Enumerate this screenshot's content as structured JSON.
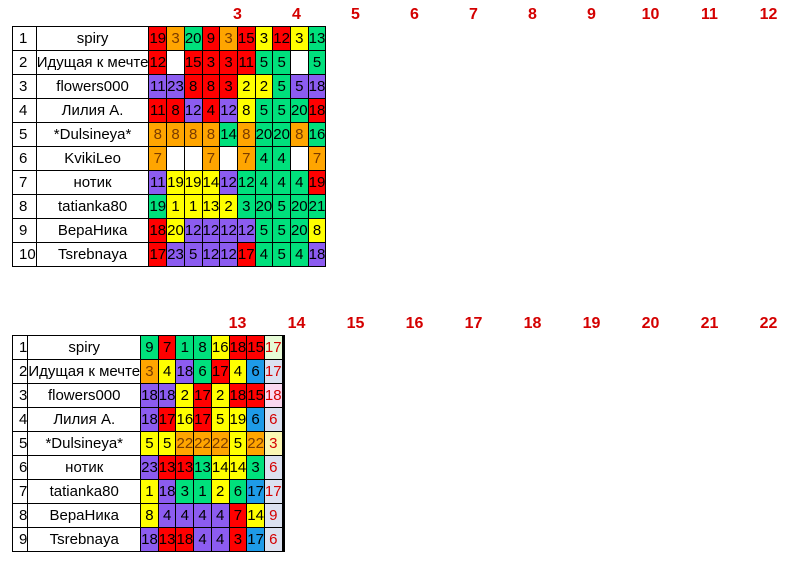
{
  "colors": {
    "red": "#ff0000",
    "orange": "#ffa500",
    "green": "#00e07c",
    "yellow": "#ffff00",
    "purple": "#8c5cf0",
    "blue": "#1e9be8",
    "pale_green": "#e6fbd6",
    "pale_blue": "#dbe1f0",
    "pale_pink": "#fad8f0",
    "pale_yellow": "#fbf8b4",
    "header_red": "#d40000"
  },
  "tables": [
    {
      "columns": [
        "3",
        "4",
        "5",
        "6",
        "7",
        "8",
        "9",
        "10",
        "11",
        "12"
      ],
      "rows": [
        {
          "num": "1",
          "name": "spiry",
          "cells": [
            [
              "19",
              "red"
            ],
            [
              "3",
              "orange"
            ],
            [
              "20",
              "green"
            ],
            [
              "9",
              "red"
            ],
            [
              "3",
              "orange"
            ],
            [
              "15",
              "red"
            ],
            [
              "3",
              "yellow"
            ],
            [
              "12",
              "red"
            ],
            [
              "3",
              "yellow"
            ],
            [
              "13",
              "green"
            ]
          ]
        },
        {
          "num": "2",
          "name": "Идущая к мечте",
          "cells": [
            [
              "12",
              "red"
            ],
            [
              "",
              ""
            ],
            [
              "15",
              "red"
            ],
            [
              "3",
              "red"
            ],
            [
              "3",
              "red"
            ],
            [
              "11",
              "red"
            ],
            [
              "5",
              "green"
            ],
            [
              "5",
              "green"
            ],
            [
              "",
              ""
            ],
            [
              "5",
              "green"
            ]
          ]
        },
        {
          "num": "3",
          "name": "flowers000",
          "cells": [
            [
              "11",
              "purple"
            ],
            [
              "23",
              "purple"
            ],
            [
              "8",
              "red"
            ],
            [
              "8",
              "red"
            ],
            [
              "3",
              "red"
            ],
            [
              "2",
              "yellow"
            ],
            [
              "2",
              "yellow"
            ],
            [
              "5",
              "green"
            ],
            [
              "5",
              "purple"
            ],
            [
              "18",
              "purple"
            ]
          ]
        },
        {
          "num": "4",
          "name": "Лилия А.",
          "cells": [
            [
              "11",
              "red"
            ],
            [
              "8",
              "red"
            ],
            [
              "12",
              "purple"
            ],
            [
              "4",
              "red"
            ],
            [
              "12",
              "purple"
            ],
            [
              "8",
              "yellow"
            ],
            [
              "5",
              "green"
            ],
            [
              "5",
              "green"
            ],
            [
              "20",
              "green"
            ],
            [
              "18",
              "red"
            ]
          ]
        },
        {
          "num": "5",
          "name": "*Dulsineya*",
          "cells": [
            [
              "8",
              "orange"
            ],
            [
              "8",
              "orange"
            ],
            [
              "8",
              "orange"
            ],
            [
              "8",
              "orange"
            ],
            [
              "14",
              "green"
            ],
            [
              "8",
              "orange"
            ],
            [
              "20",
              "green"
            ],
            [
              "20",
              "green"
            ],
            [
              "8",
              "orange"
            ],
            [
              "16",
              "green"
            ]
          ]
        },
        {
          "num": "6",
          "name": "KvikiLeo",
          "cells": [
            [
              "7",
              "orange"
            ],
            [
              "",
              ""
            ],
            [
              "",
              ""
            ],
            [
              "7",
              "orange"
            ],
            [
              "",
              ""
            ],
            [
              "7",
              "orange"
            ],
            [
              "4",
              "green"
            ],
            [
              "4",
              "green"
            ],
            [
              "",
              ""
            ],
            [
              "7",
              "orange"
            ]
          ]
        },
        {
          "num": "7",
          "name": "нотик",
          "cells": [
            [
              "11",
              "purple"
            ],
            [
              "19",
              "yellow"
            ],
            [
              "19",
              "yellow"
            ],
            [
              "14",
              "yellow"
            ],
            [
              "12",
              "purple"
            ],
            [
              "12",
              "green"
            ],
            [
              "4",
              "green"
            ],
            [
              "4",
              "green"
            ],
            [
              "4",
              "green"
            ],
            [
              "19",
              "red"
            ]
          ]
        },
        {
          "num": "8",
          "name": "tatianka80",
          "cells": [
            [
              "19",
              "green"
            ],
            [
              "1",
              "yellow"
            ],
            [
              "1",
              "yellow"
            ],
            [
              "13",
              "yellow"
            ],
            [
              "2",
              "yellow"
            ],
            [
              "3",
              "green"
            ],
            [
              "20",
              "green"
            ],
            [
              "5",
              "green"
            ],
            [
              "20",
              "green"
            ],
            [
              "21",
              "green"
            ]
          ]
        },
        {
          "num": "9",
          "name": "ВераНика",
          "cells": [
            [
              "18",
              "red"
            ],
            [
              "20",
              "yellow"
            ],
            [
              "12",
              "purple"
            ],
            [
              "12",
              "purple"
            ],
            [
              "12",
              "purple"
            ],
            [
              "12",
              "purple"
            ],
            [
              "5",
              "green"
            ],
            [
              "5",
              "green"
            ],
            [
              "20",
              "green"
            ],
            [
              "8",
              "yellow"
            ]
          ]
        },
        {
          "num": "10",
          "name": "Tsrebnaya",
          "cells": [
            [
              "17",
              "red"
            ],
            [
              "23",
              "purple"
            ],
            [
              "5",
              "purple"
            ],
            [
              "12",
              "purple"
            ],
            [
              "12",
              "purple"
            ],
            [
              "17",
              "red"
            ],
            [
              "4",
              "green"
            ],
            [
              "5",
              "green"
            ],
            [
              "4",
              "green"
            ],
            [
              "18",
              "purple"
            ]
          ]
        }
      ]
    },
    {
      "columns": [
        "13",
        "14",
        "15",
        "16",
        "17",
        "18",
        "19",
        "20",
        "21",
        "22"
      ],
      "rows": [
        {
          "num": "1",
          "name": "spiry",
          "cells": [
            [
              "9",
              "green"
            ],
            [
              "7",
              "red"
            ],
            [
              "1",
              "green"
            ],
            [
              "8",
              "green"
            ],
            [
              "16",
              "yellow"
            ],
            [
              "18",
              "red"
            ],
            [
              "15",
              "red"
            ],
            [
              "17",
              "pale_green"
            ],
            [
              "",
              ""
            ],
            [
              "",
              ""
            ]
          ]
        },
        {
          "num": "2",
          "name": "Идущая к мечте",
          "cells": [
            [
              "3",
              "orange"
            ],
            [
              "4",
              "yellow"
            ],
            [
              "18",
              "purple"
            ],
            [
              "6",
              "green"
            ],
            [
              "17",
              "red"
            ],
            [
              "4",
              "yellow"
            ],
            [
              "6",
              "blue"
            ],
            [
              "17",
              "pale_blue"
            ],
            [
              "",
              ""
            ],
            [
              "",
              ""
            ]
          ]
        },
        {
          "num": "3",
          "name": "flowers000",
          "cells": [
            [
              "18",
              "purple"
            ],
            [
              "18",
              "purple"
            ],
            [
              "2",
              "yellow"
            ],
            [
              "17",
              "red"
            ],
            [
              "2",
              "yellow"
            ],
            [
              "18",
              "red"
            ],
            [
              "15",
              "red"
            ],
            [
              "18",
              "pale_pink"
            ],
            [
              "",
              ""
            ],
            [
              "",
              ""
            ]
          ]
        },
        {
          "num": "4",
          "name": "Лилия А.",
          "cells": [
            [
              "18",
              "purple"
            ],
            [
              "17",
              "red"
            ],
            [
              "16",
              "yellow"
            ],
            [
              "17",
              "red"
            ],
            [
              "5",
              "yellow"
            ],
            [
              "19",
              "yellow"
            ],
            [
              "6",
              "blue"
            ],
            [
              "6",
              "pale_blue"
            ],
            [
              "",
              ""
            ],
            [
              "",
              ""
            ]
          ]
        },
        {
          "num": "5",
          "name": "*Dulsineya*",
          "cells": [
            [
              "5",
              "yellow"
            ],
            [
              "5",
              "yellow"
            ],
            [
              "22",
              "orange"
            ],
            [
              "22",
              "orange"
            ],
            [
              "22",
              "orange"
            ],
            [
              "5",
              "yellow"
            ],
            [
              "22",
              "orange"
            ],
            [
              "3",
              "pale_yellow"
            ],
            [
              "",
              ""
            ],
            [
              "",
              ""
            ]
          ]
        },
        {
          "num": "6",
          "name": "нотик",
          "cells": [
            [
              "23",
              "purple"
            ],
            [
              "13",
              "red"
            ],
            [
              "13",
              "red"
            ],
            [
              "13",
              "green"
            ],
            [
              "14",
              "yellow"
            ],
            [
              "14",
              "yellow"
            ],
            [
              "3",
              "green"
            ],
            [
              "6",
              "pale_blue"
            ],
            [
              "",
              ""
            ],
            [
              "",
              ""
            ]
          ]
        },
        {
          "num": "7",
          "name": "tatianka80",
          "cells": [
            [
              "1",
              "yellow"
            ],
            [
              "18",
              "purple"
            ],
            [
              "3",
              "green"
            ],
            [
              "1",
              "green"
            ],
            [
              "2",
              "yellow"
            ],
            [
              "6",
              "green"
            ],
            [
              "17",
              "blue"
            ],
            [
              "17",
              "pale_blue"
            ],
            [
              "",
              ""
            ],
            [
              "",
              ""
            ]
          ]
        },
        {
          "num": "8",
          "name": "ВераНика",
          "cells": [
            [
              "8",
              "yellow"
            ],
            [
              "4",
              "purple"
            ],
            [
              "4",
              "purple"
            ],
            [
              "4",
              "purple"
            ],
            [
              "4",
              "purple"
            ],
            [
              "7",
              "red"
            ],
            [
              "14",
              "yellow"
            ],
            [
              "9",
              "pale_blue"
            ],
            [
              "",
              ""
            ],
            [
              "",
              ""
            ]
          ]
        },
        {
          "num": "9",
          "name": "Tsrebnaya",
          "cells": [
            [
              "18",
              "purple"
            ],
            [
              "13",
              "red"
            ],
            [
              "18",
              "red"
            ],
            [
              "4",
              "purple"
            ],
            [
              "4",
              "purple"
            ],
            [
              "3",
              "red"
            ],
            [
              "17",
              "blue"
            ],
            [
              "6",
              "pale_blue"
            ],
            [
              "",
              ""
            ],
            [
              "",
              ""
            ]
          ]
        }
      ]
    }
  ]
}
